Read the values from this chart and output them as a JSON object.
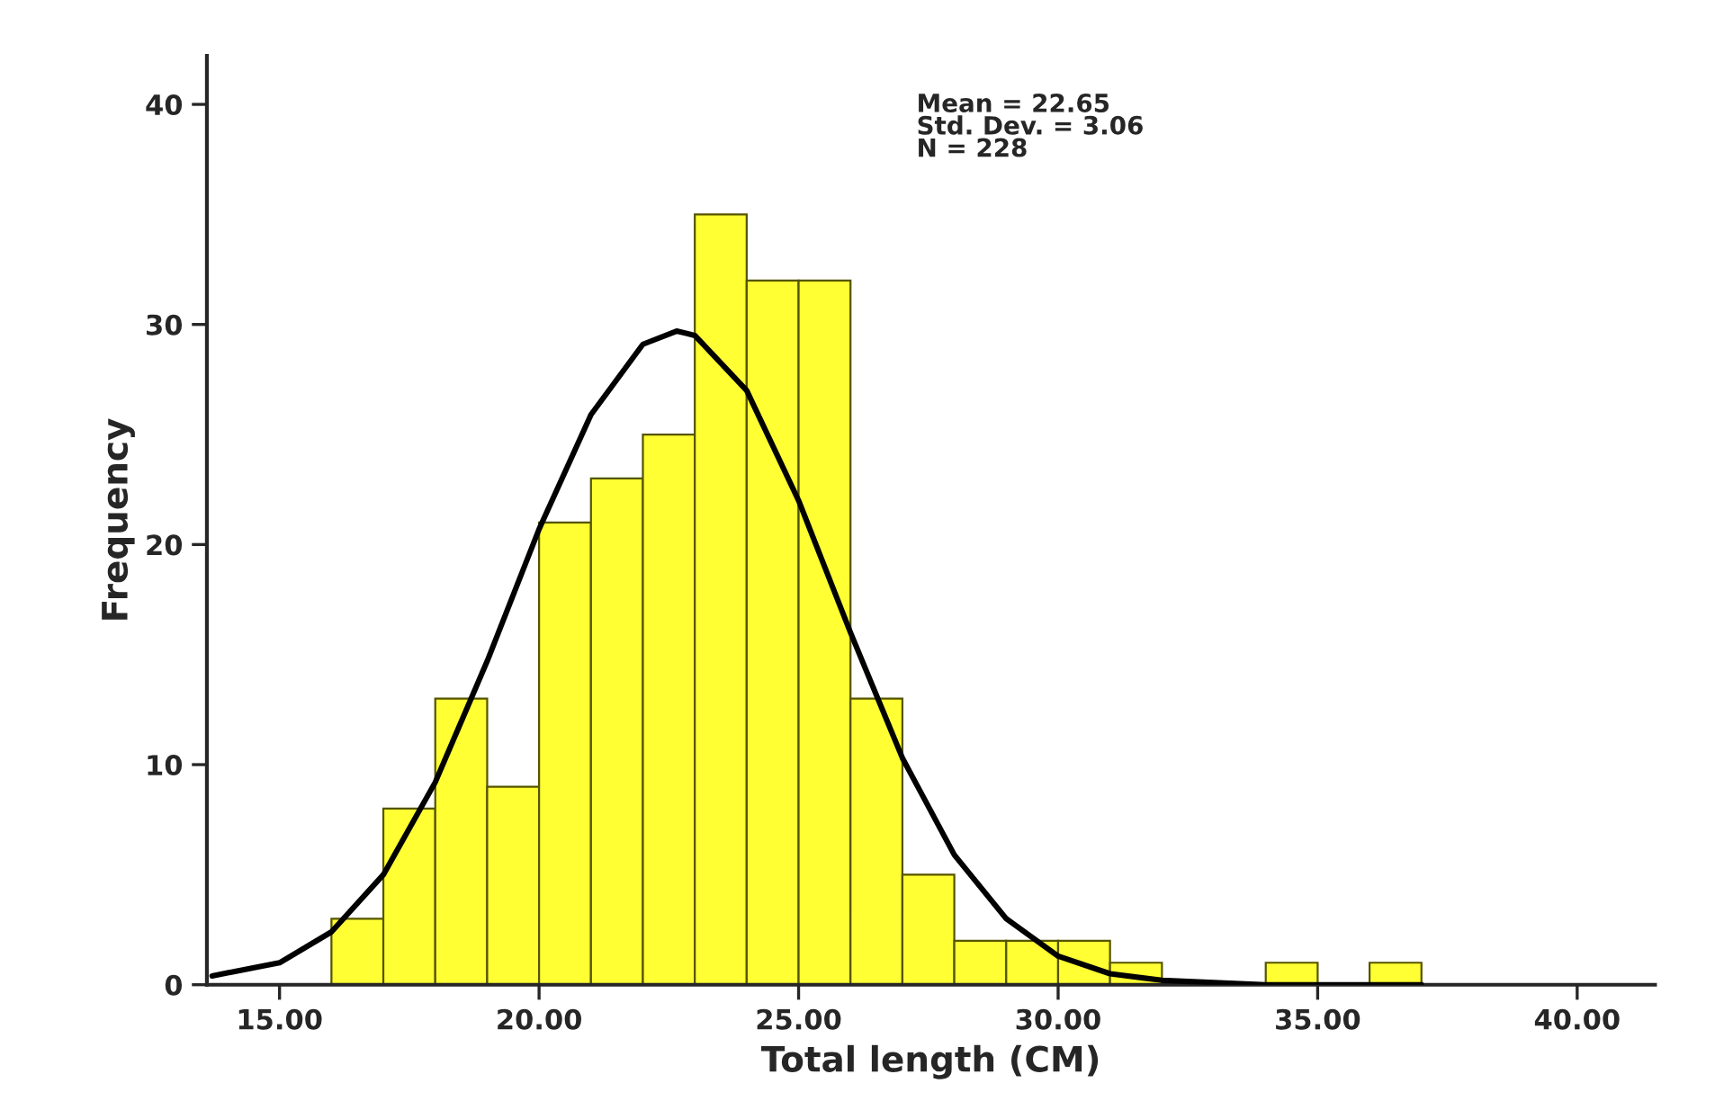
{
  "chart_data": {
    "type": "histogram",
    "xlabel": "Total length (CM)",
    "ylabel": "Frequency",
    "bins": [
      16,
      17,
      18,
      19,
      20,
      21,
      22,
      23,
      24,
      25,
      26,
      27,
      28,
      29,
      30,
      31,
      32,
      33,
      34,
      35,
      36,
      37
    ],
    "values": [
      3,
      8,
      13,
      9,
      21,
      23,
      25,
      35,
      32,
      32,
      13,
      5,
      2,
      2,
      2,
      1,
      0,
      0,
      1,
      0,
      1
    ],
    "color": "#ffff33",
    "series": [
      {
        "type": "line",
        "color": "#000000",
        "x": [
          13.7,
          15,
          16,
          17,
          18,
          19,
          20,
          21,
          22,
          22.65,
          23,
          24,
          25,
          26,
          27,
          28,
          29,
          30,
          31,
          32,
          33,
          34,
          35,
          36,
          37
        ],
        "values": [
          0.4,
          1.0,
          2.4,
          5.0,
          9.2,
          14.7,
          20.7,
          25.9,
          29.1,
          29.7,
          29.5,
          27.0,
          22.0,
          16.0,
          10.3,
          5.9,
          3.0,
          1.3,
          0.5,
          0.2,
          0.1,
          0,
          0,
          0,
          0
        ]
      }
    ],
    "annotations": [
      "Mean = 22.65\nStd. Dev. = 3.06\nN = 228"
    ],
    "xlim": [
      13.6,
      41.5
    ],
    "ylim": [
      0,
      42.2
    ],
    "xticks": [
      {
        "value": 15,
        "label": "15.00"
      },
      {
        "value": 20,
        "label": "20.00"
      },
      {
        "value": 25,
        "label": "25.00"
      },
      {
        "value": 30,
        "label": "30.00"
      },
      {
        "value": 35,
        "label": "35.00"
      },
      {
        "value": 40,
        "label": "40.00"
      }
    ],
    "yticks": [
      0,
      10,
      20,
      30,
      40
    ],
    "grid": false,
    "legend": false
  }
}
